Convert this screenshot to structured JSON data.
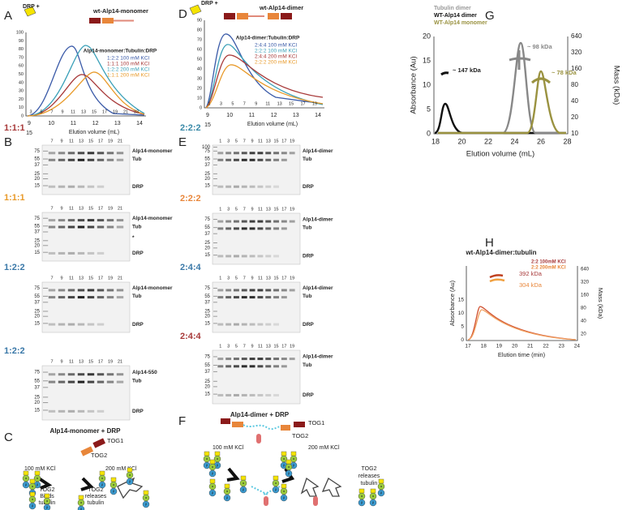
{
  "panels": {
    "A": {
      "label": "A",
      "drp": "DRP +",
      "construct": "wt-Alp14-monomer",
      "legend_title": "Alp14-monomer:Tubulin:DRP",
      "legend": [
        "1:2:2 100 mM KCl",
        "1:1:1 100 mM KCl",
        "1:2:2 200 mM KCl",
        "1:1:1 200 mM KCl"
      ],
      "yticks": [
        "100",
        "90",
        "80",
        "70",
        "60",
        "50",
        "40",
        "30",
        "20",
        "10",
        "0"
      ],
      "xticks": [
        "9",
        "10",
        "11",
        "12",
        "13",
        "14"
      ],
      "x_extra": "15",
      "fractions": [
        "3",
        "5",
        "7",
        "9",
        "11",
        "13",
        "15",
        "17",
        "19",
        "21",
        "23"
      ],
      "xlabel": "Elution volume (mL)"
    },
    "B": {
      "label": "B",
      "gels": [
        {
          "ratio": "1:1:1",
          "lanes": [
            "7",
            "9",
            "11",
            "13",
            "15",
            "17",
            "19",
            "21"
          ],
          "mw": [
            "75",
            "55",
            "37",
            "25",
            "20",
            "15"
          ],
          "bands": [
            "Alp14-monomer",
            "Tub",
            "DRP"
          ]
        },
        {
          "ratio": "1:1:1",
          "lanes": [
            "7",
            "9",
            "11",
            "13",
            "15",
            "17",
            "19",
            "21"
          ],
          "mw": [
            "75",
            "55",
            "37",
            "25",
            "20",
            "15"
          ],
          "bands": [
            "Alp14-monomer",
            "Tub",
            "*",
            "DRP"
          ]
        },
        {
          "ratio": "1:2:2",
          "lanes": [
            "7",
            "9",
            "11",
            "13",
            "15",
            "17",
            "19",
            "21"
          ],
          "mw": [
            "75",
            "55",
            "37",
            "25",
            "20",
            "15"
          ],
          "bands": [
            "Alp14-monomer",
            "Tub",
            "DRP"
          ]
        },
        {
          "ratio": "1:2:2",
          "lanes": [
            "7",
            "9",
            "11",
            "13",
            "15",
            "17",
            "19",
            "21"
          ],
          "mw": [
            "75",
            "55",
            "37",
            "25",
            "20",
            "15"
          ],
          "bands": [
            "Alp14-550",
            "Tub",
            "DRP"
          ]
        }
      ]
    },
    "C": {
      "label": "C",
      "title": "Alp14-monomer + DRP",
      "tog1": "TOG1",
      "tog2": "TOG2",
      "low": "100 mM KCl",
      "high": "200 mM KCl",
      "left_caption": [
        "TOG2",
        "Binds",
        "tubulin"
      ],
      "right_caption": [
        "TOG2",
        "releases",
        "tubulin"
      ],
      "alpha": "α",
      "beta": "β"
    },
    "D": {
      "label": "D",
      "drp": "DRP +",
      "construct": "wt-Alp14-dimer",
      "legend_title": "Alp14-dimer:Tubulin:DRP",
      "legend": [
        "2:4:4 100 mM KCl",
        "2:2:2 100 mM KCl",
        "2:4:4 200 mM KCl",
        "2:2:2 200 mM KCl"
      ],
      "yticks": [
        "90",
        "80",
        "70",
        "60",
        "50",
        "40",
        "30",
        "20",
        "10",
        "0"
      ],
      "xticks": [
        "9",
        "10",
        "11",
        "12",
        "13",
        "14"
      ],
      "x_extra": "15",
      "fractions": [
        "1",
        "3",
        "5",
        "7",
        "9",
        "11",
        "13",
        "15",
        "17",
        "19"
      ],
      "xlabel": "Elution volume (mL)"
    },
    "E": {
      "label": "E",
      "gels": [
        {
          "ratio": "2:2:2",
          "lanes": [
            "1",
            "3",
            "5",
            "7",
            "9",
            "11",
            "13",
            "15",
            "17",
            "19"
          ],
          "mw": [
            "100",
            "75",
            "55",
            "37",
            "25",
            "20",
            "15"
          ],
          "bands": [
            "Alp14-dimer",
            "Tub",
            "DRP"
          ]
        },
        {
          "ratio": "2:2:2",
          "lanes": [
            "1",
            "3",
            "5",
            "7",
            "9",
            "11",
            "13",
            "15",
            "17",
            "19"
          ],
          "mw": [
            "75",
            "55",
            "37",
            "25",
            "20",
            "15"
          ],
          "bands": [
            "Alp14-dimer",
            "Tub",
            "DRP"
          ]
        },
        {
          "ratio": "2:4:4",
          "lanes": [
            "1",
            "3",
            "5",
            "7",
            "9",
            "11",
            "13",
            "15",
            "17",
            "19"
          ],
          "mw": [
            "75",
            "55",
            "37",
            "25",
            "20",
            "15"
          ],
          "bands": [
            "Alp14-dimer",
            "Tub",
            "DRP"
          ]
        },
        {
          "ratio": "2:4:4",
          "lanes": [
            "1",
            "3",
            "5",
            "7",
            "9",
            "11",
            "13",
            "15",
            "17",
            "19"
          ],
          "mw": [
            "75",
            "55",
            "37",
            "25",
            "20",
            "15"
          ],
          "bands": [
            "Alp14-dimer",
            "Tub",
            "DRP"
          ]
        }
      ]
    },
    "F": {
      "label": "F",
      "title": "Alp14-dimer + DRP",
      "tog1": "TOG1",
      "tog2": "TOG2",
      "low": "100 mM KCl",
      "high": "200 mM KCl",
      "right_caption": [
        "TOG2",
        "releases",
        "tubulin"
      ]
    },
    "G": {
      "label": "G",
      "legend": [
        "Tubulin dimer",
        "WT-Alp14 dimer",
        "WT-Alp14 monomer"
      ],
      "ylabel": "Absorbance (Au)",
      "y2label": "Mass (kDa)",
      "yticks": [
        "20",
        "15",
        "10",
        "5",
        "0"
      ],
      "y2ticks": [
        "640",
        "320",
        "160",
        "80",
        "40",
        "20",
        "10"
      ],
      "xticks": [
        "18",
        "20",
        "22",
        "24",
        "26",
        "28"
      ],
      "xlabel": "Elution volume (mL)",
      "annotations": [
        "~ 147 kDa",
        "~ 98 kDa",
        "~ 78 kDa"
      ]
    },
    "H": {
      "label": "H",
      "title": "wt-Alp14-dimer:tubulin",
      "legend": [
        "2:2 100mM KCl",
        "2:2 200mM KCl"
      ],
      "annotations": [
        "392 kDa",
        "304 kDa"
      ],
      "ylabel": "Absorbance (Au)",
      "y2label": "Mass (kDa)",
      "yticks": [
        "15",
        "10",
        "5",
        "0"
      ],
      "y2ticks": [
        "640",
        "320",
        "160",
        "80",
        "40",
        "20"
      ],
      "xticks": [
        "17",
        "18",
        "19",
        "20",
        "21",
        "22",
        "23",
        "24"
      ],
      "xlabel": "Elution time (min)"
    }
  }
}
